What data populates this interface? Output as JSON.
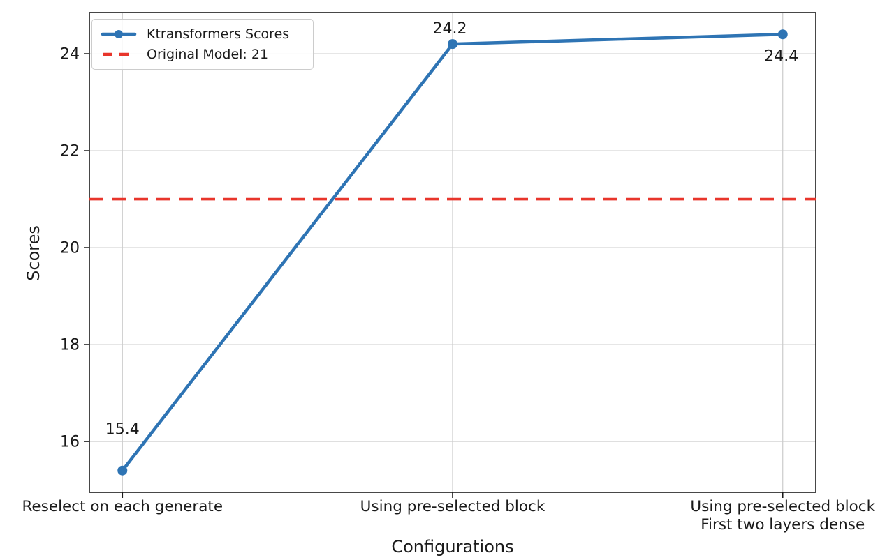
{
  "colors": {
    "series_blue": "#2e74b4",
    "reference_red": "#e8352b",
    "grid": "#cccccc",
    "spine": "#1a1a1a",
    "text": "#1a1a1a"
  },
  "legend": {
    "items": [
      {
        "label": "Ktransformers Scores",
        "style": "solid-line-with-marker"
      },
      {
        "label": "Original Model: 21",
        "style": "dashed-line"
      }
    ]
  },
  "chart_data": {
    "type": "line",
    "title": "",
    "xlabel": "Configurations",
    "ylabel": "Scores",
    "categories": [
      "Reselect on each generate",
      "Using pre-selected block",
      "Using pre-selected block\nFirst two layers dense"
    ],
    "series": [
      {
        "name": "Ktransformers Scores",
        "values": [
          15.4,
          24.2,
          24.4
        ],
        "color": "#2e74b4",
        "marker": "circle"
      }
    ],
    "data_labels": [
      "15.4",
      "24.2",
      "24.4"
    ],
    "reference_line": {
      "label": "Original Model: 21",
      "value": 21,
      "color": "#e8352b",
      "style": "dashed"
    },
    "yticks": [
      16,
      18,
      20,
      22,
      24
    ],
    "ylim": [
      14.95,
      24.85
    ],
    "xlim": [
      -0.1,
      2.1
    ],
    "grid": true,
    "legend_position": "upper left"
  }
}
